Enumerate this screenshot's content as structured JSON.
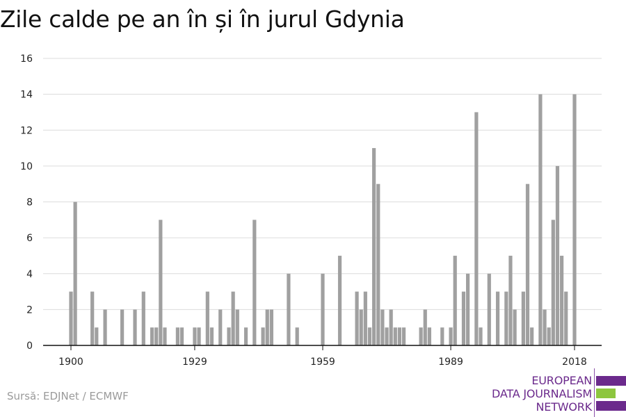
{
  "chart_data": {
    "type": "bar",
    "title": "Zile calde pe an în și în jurul Gdynia",
    "xlabel": "",
    "ylabel": "",
    "ylim": [
      0,
      16
    ],
    "yticks": [
      0,
      2,
      4,
      6,
      8,
      10,
      12,
      14,
      16
    ],
    "xticks": [
      1900,
      1929,
      1959,
      1989,
      2018
    ],
    "xlim": [
      1900,
      2018
    ],
    "grid": true,
    "bar_color": "#a0a0a0",
    "series": [
      {
        "points": [
          {
            "x": 1900,
            "y": 3
          },
          {
            "x": 1901,
            "y": 8
          },
          {
            "x": 1905,
            "y": 3
          },
          {
            "x": 1906,
            "y": 1
          },
          {
            "x": 1908,
            "y": 2
          },
          {
            "x": 1912,
            "y": 2
          },
          {
            "x": 1915,
            "y": 2
          },
          {
            "x": 1917,
            "y": 3
          },
          {
            "x": 1919,
            "y": 1
          },
          {
            "x": 1920,
            "y": 1
          },
          {
            "x": 1921,
            "y": 7
          },
          {
            "x": 1922,
            "y": 1
          },
          {
            "x": 1925,
            "y": 1
          },
          {
            "x": 1926,
            "y": 1
          },
          {
            "x": 1929,
            "y": 1
          },
          {
            "x": 1930,
            "y": 1
          },
          {
            "x": 1932,
            "y": 3
          },
          {
            "x": 1933,
            "y": 1
          },
          {
            "x": 1935,
            "y": 2
          },
          {
            "x": 1937,
            "y": 1
          },
          {
            "x": 1938,
            "y": 3
          },
          {
            "x": 1939,
            "y": 2
          },
          {
            "x": 1941,
            "y": 1
          },
          {
            "x": 1943,
            "y": 7
          },
          {
            "x": 1945,
            "y": 1
          },
          {
            "x": 1946,
            "y": 2
          },
          {
            "x": 1947,
            "y": 2
          },
          {
            "x": 1951,
            "y": 4
          },
          {
            "x": 1953,
            "y": 1
          },
          {
            "x": 1959,
            "y": 4
          },
          {
            "x": 1963,
            "y": 5
          },
          {
            "x": 1967,
            "y": 3
          },
          {
            "x": 1968,
            "y": 2
          },
          {
            "x": 1969,
            "y": 3
          },
          {
            "x": 1970,
            "y": 1
          },
          {
            "x": 1971,
            "y": 11
          },
          {
            "x": 1972,
            "y": 9
          },
          {
            "x": 1973,
            "y": 2
          },
          {
            "x": 1974,
            "y": 1
          },
          {
            "x": 1975,
            "y": 2
          },
          {
            "x": 1976,
            "y": 1
          },
          {
            "x": 1977,
            "y": 1
          },
          {
            "x": 1978,
            "y": 1
          },
          {
            "x": 1982,
            "y": 1
          },
          {
            "x": 1983,
            "y": 2
          },
          {
            "x": 1984,
            "y": 1
          },
          {
            "x": 1987,
            "y": 1
          },
          {
            "x": 1989,
            "y": 1
          },
          {
            "x": 1990,
            "y": 5
          },
          {
            "x": 1992,
            "y": 3
          },
          {
            "x": 1993,
            "y": 4
          },
          {
            "x": 1995,
            "y": 13
          },
          {
            "x": 1996,
            "y": 1
          },
          {
            "x": 1998,
            "y": 4
          },
          {
            "x": 2000,
            "y": 3
          },
          {
            "x": 2002,
            "y": 3
          },
          {
            "x": 2003,
            "y": 5
          },
          {
            "x": 2004,
            "y": 2
          },
          {
            "x": 2006,
            "y": 3
          },
          {
            "x": 2007,
            "y": 9
          },
          {
            "x": 2008,
            "y": 1
          },
          {
            "x": 2010,
            "y": 14
          },
          {
            "x": 2011,
            "y": 2
          },
          {
            "x": 2012,
            "y": 1
          },
          {
            "x": 2013,
            "y": 7
          },
          {
            "x": 2014,
            "y": 10
          },
          {
            "x": 2015,
            "y": 5
          },
          {
            "x": 2016,
            "y": 3
          },
          {
            "x": 2018,
            "y": 14
          }
        ]
      }
    ]
  },
  "source": "Sursă: EDJNet / ECMWF",
  "logo": {
    "lines": [
      "EUROPEAN",
      "DATA JOURNALISM",
      "NETWORK"
    ],
    "color_primary": "#6b2a8c",
    "color_accent": "#8dc63f"
  }
}
